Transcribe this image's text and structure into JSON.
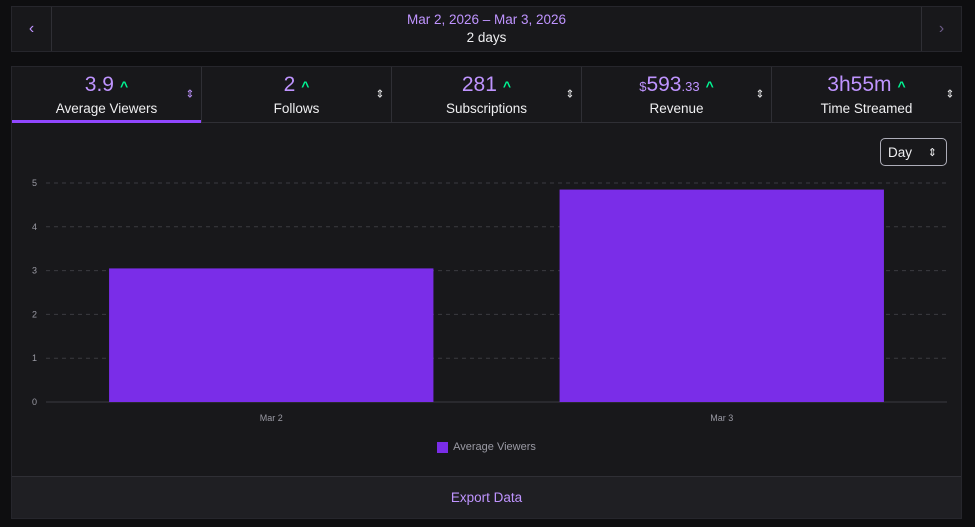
{
  "date_nav": {
    "prev_icon": "‹",
    "next_icon": "›",
    "range": "Mar 2, 2026 – Mar 3, 2026",
    "days": "2 days"
  },
  "stats": [
    {
      "value": "3.9",
      "trend": "^",
      "label": "Average Viewers",
      "active": true
    },
    {
      "value": "2",
      "trend": "^",
      "label": "Follows",
      "active": false
    },
    {
      "value": "281",
      "trend": "^",
      "label": "Subscriptions",
      "active": false
    },
    {
      "currency": "$",
      "value": "593",
      "cents": ".33",
      "trend": "^",
      "label": "Revenue",
      "active": false
    },
    {
      "value": "3h55m",
      "trend": "^",
      "label": "Time Streamed",
      "active": false
    }
  ],
  "period_select": {
    "value": "Day",
    "icon": "⇕"
  },
  "sort_icon": "⇕",
  "chart_data": {
    "type": "bar",
    "categories": [
      "Mar 2",
      "Mar 3"
    ],
    "series": [
      {
        "name": "Average Viewers",
        "values": [
          3.05,
          4.85
        ]
      }
    ],
    "ylim": [
      0,
      5
    ],
    "yticks": [
      0,
      1,
      2,
      3,
      4,
      5
    ],
    "grid": true,
    "legend": "bottom-center",
    "bar_color": "#7a2de8"
  },
  "export_label": "Export Data",
  "colors": {
    "accent": "#bf94ff",
    "bar": "#7a2de8",
    "trend": "#00f593",
    "background": "#0e0e10",
    "panel": "#18181b"
  }
}
